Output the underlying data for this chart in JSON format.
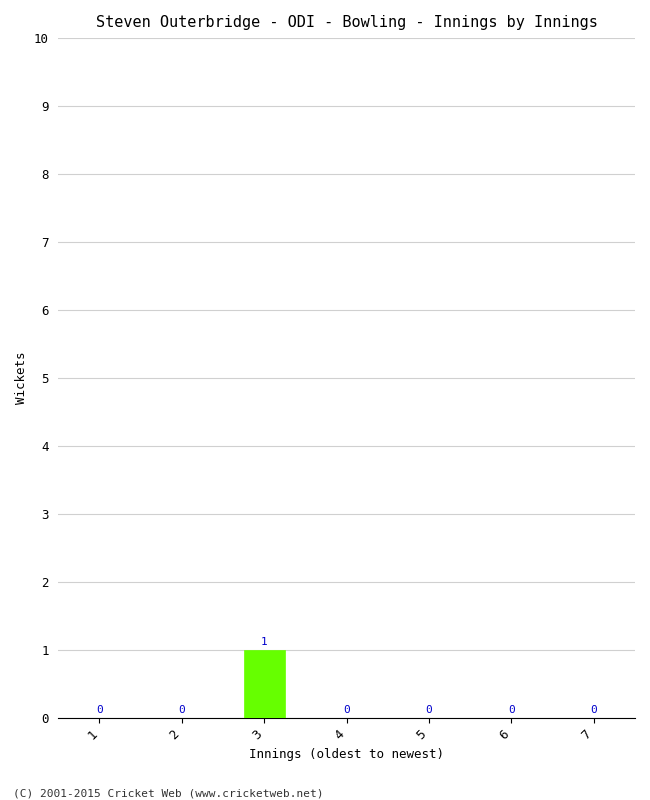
{
  "title": "Steven Outerbridge - ODI - Bowling - Innings by Innings",
  "xlabel": "Innings (oldest to newest)",
  "ylabel": "Wickets",
  "categories": [
    1,
    2,
    3,
    4,
    5,
    6,
    7
  ],
  "values": [
    0,
    0,
    1,
    0,
    0,
    0,
    0
  ],
  "special_bar_color": "#66ff00",
  "ylim": [
    0,
    10
  ],
  "yticks": [
    0,
    1,
    2,
    3,
    4,
    5,
    6,
    7,
    8,
    9,
    10
  ],
  "background_color": "#ffffff",
  "grid_color": "#d0d0d0",
  "label_color": "#0000cc",
  "footer": "(C) 2001-2015 Cricket Web (www.cricketweb.net)",
  "title_fontsize": 11,
  "axis_label_fontsize": 9,
  "tick_fontsize": 9,
  "annotation_fontsize": 8,
  "footer_fontsize": 8
}
